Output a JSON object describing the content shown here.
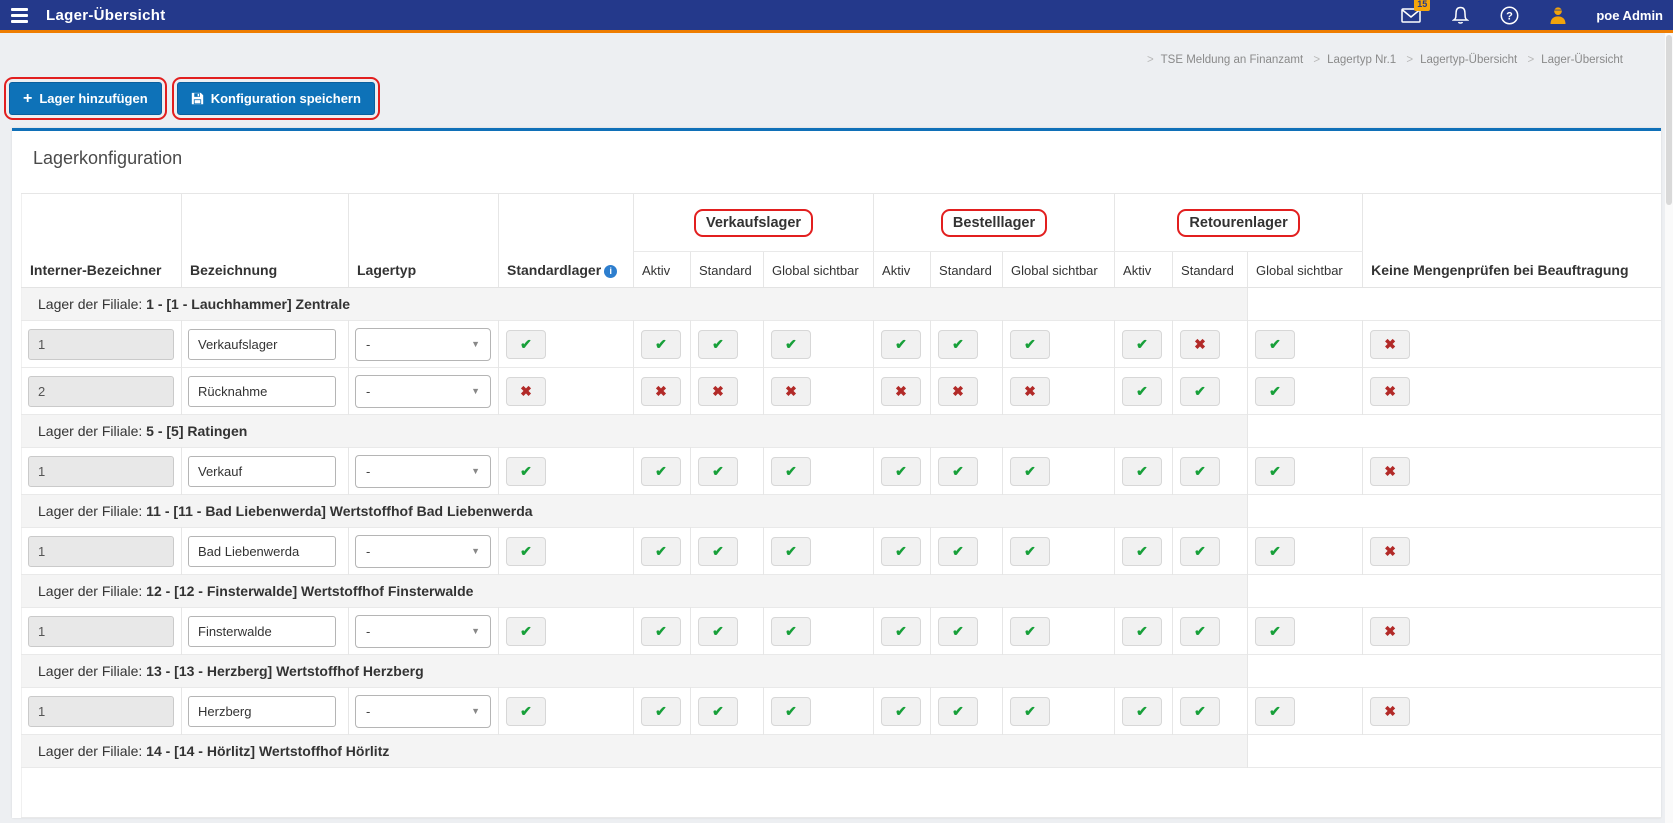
{
  "navbar": {
    "title": "Lager-Übersicht",
    "mail_badge": "15",
    "user_name": "poe Admin"
  },
  "breadcrumb": {
    "separator": ">",
    "items": [
      "TSE Meldung an Finanzamt",
      "Lagertyp Nr.1",
      "Lagertyp-Übersicht",
      "Lager-Übersicht"
    ]
  },
  "toolbar": {
    "add_label": "Lager hinzufügen",
    "save_label": "Konfiguration speichern"
  },
  "panel": {
    "title": "Lagerkonfiguration"
  },
  "icons": {
    "check": "✔",
    "cross": "✖",
    "caret": "▼",
    "plus": "+",
    "info": "i"
  },
  "colors": {
    "navbar_blue": "#24398b",
    "accent_orange": "#ee7d01",
    "button_blue": "#0e72b8",
    "annotation_red": "#e21f1f",
    "check_green": "#18a03a",
    "cross_red": "#b22a28",
    "panel_border_blue": "#1070b8"
  },
  "table": {
    "main_headers": [
      "Interner-Bezeichner",
      "Bezeichnung",
      "Lagertyp",
      "Standardlager"
    ],
    "group_headers": [
      "Verkaufslager",
      "Bestelllager",
      "Retourenlager"
    ],
    "sub_headers": [
      "Aktiv",
      "Standard",
      "Global sichtbar"
    ],
    "last_header": "Keine Mengenprüfen bei Beauftragung",
    "group_row_prefix": "Lager der Filiale:",
    "groups": [
      {
        "label": "1 - [1 - Lauchhammer] Zentrale",
        "rows": [
          {
            "id": "1",
            "name": "Verkaufslager",
            "type": "-",
            "standardlager": true,
            "verkauf": [
              true,
              true,
              true
            ],
            "bestell": [
              true,
              true,
              true
            ],
            "retour": [
              true,
              false,
              true
            ],
            "keine_mengen": false
          },
          {
            "id": "2",
            "name": "Rücknahme",
            "type": "-",
            "standardlager": false,
            "verkauf": [
              false,
              false,
              false
            ],
            "bestell": [
              false,
              false,
              false
            ],
            "retour": [
              true,
              true,
              true
            ],
            "keine_mengen": false
          }
        ]
      },
      {
        "label": "5 - [5] Ratingen",
        "rows": [
          {
            "id": "1",
            "name": "Verkauf",
            "type": "-",
            "standardlager": true,
            "verkauf": [
              true,
              true,
              true
            ],
            "bestell": [
              true,
              true,
              true
            ],
            "retour": [
              true,
              true,
              true
            ],
            "keine_mengen": false
          }
        ]
      },
      {
        "label": "11 - [11 - Bad Liebenwerda] Wertstoffhof Bad Liebenwerda",
        "rows": [
          {
            "id": "1",
            "name": "Bad Liebenwerda",
            "type": "-",
            "standardlager": true,
            "verkauf": [
              true,
              true,
              true
            ],
            "bestell": [
              true,
              true,
              true
            ],
            "retour": [
              true,
              true,
              true
            ],
            "keine_mengen": false
          }
        ]
      },
      {
        "label": "12 - [12 - Finsterwalde] Wertstoffhof Finsterwalde",
        "rows": [
          {
            "id": "1",
            "name": "Finsterwalde",
            "type": "-",
            "standardlager": true,
            "verkauf": [
              true,
              true,
              true
            ],
            "bestell": [
              true,
              true,
              true
            ],
            "retour": [
              true,
              true,
              true
            ],
            "keine_mengen": false
          }
        ]
      },
      {
        "label": "13 - [13 - Herzberg] Wertstoffhof Herzberg",
        "rows": [
          {
            "id": "1",
            "name": "Herzberg",
            "type": "-",
            "standardlager": true,
            "verkauf": [
              true,
              true,
              true
            ],
            "bestell": [
              true,
              true,
              true
            ],
            "retour": [
              true,
              true,
              true
            ],
            "keine_mengen": false
          }
        ]
      },
      {
        "label": "14 - [14 - Hörlitz] Wertstoffhof Hörlitz",
        "rows": []
      }
    ]
  }
}
